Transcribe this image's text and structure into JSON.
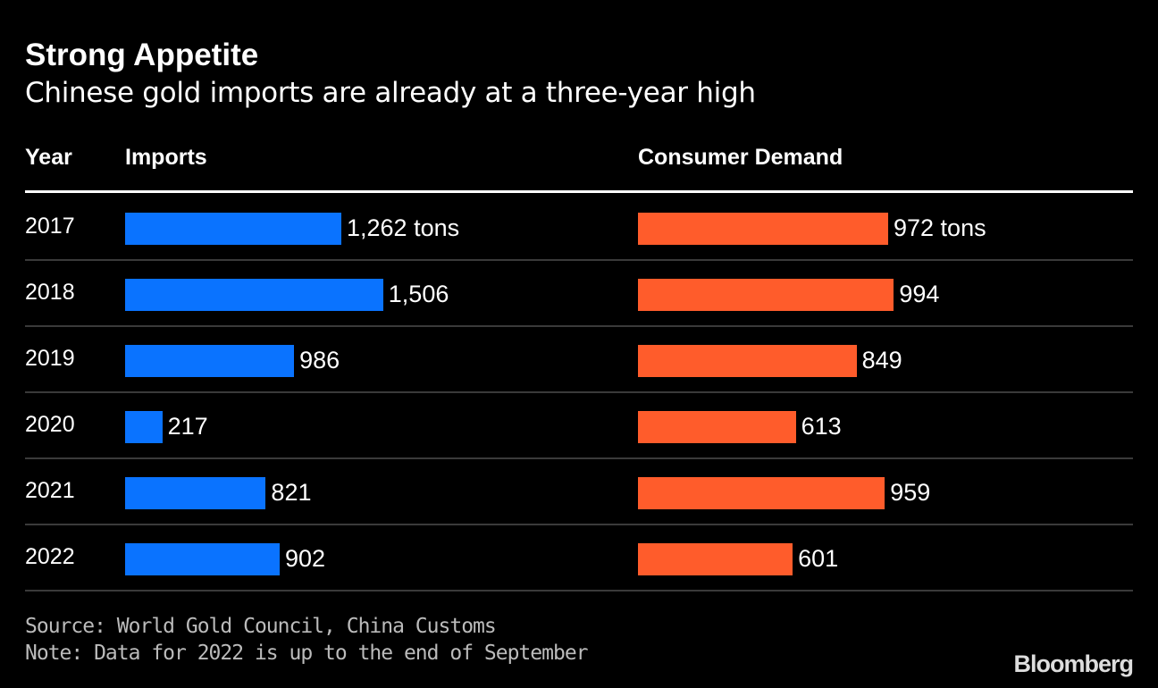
{
  "chart_data": {
    "type": "bar",
    "title": "Strong Appetite",
    "subtitle": "Chinese gold imports are already at a three-year high",
    "columns": {
      "year": "Year",
      "imports": "Imports",
      "demand": "Consumer Demand"
    },
    "unit": "tons",
    "categories": [
      "2017",
      "2018",
      "2019",
      "2020",
      "2021",
      "2022"
    ],
    "series": [
      {
        "name": "Imports",
        "color": "#0a73ff",
        "values": [
          1262,
          1506,
          986,
          217,
          821,
          902
        ],
        "labels": [
          "1,262 tons",
          "1,506",
          "986",
          "217",
          "821",
          "902"
        ]
      },
      {
        "name": "Consumer Demand",
        "color": "#ff5c2b",
        "values": [
          972,
          994,
          849,
          613,
          959,
          601
        ],
        "labels": [
          "972 tons",
          "994",
          "849",
          "613",
          "959",
          "601"
        ]
      }
    ],
    "source": "Source: World Gold Council, China Customs",
    "note": "Note: Data for 2022 is up to the end of September",
    "brand": "Bloomberg"
  }
}
